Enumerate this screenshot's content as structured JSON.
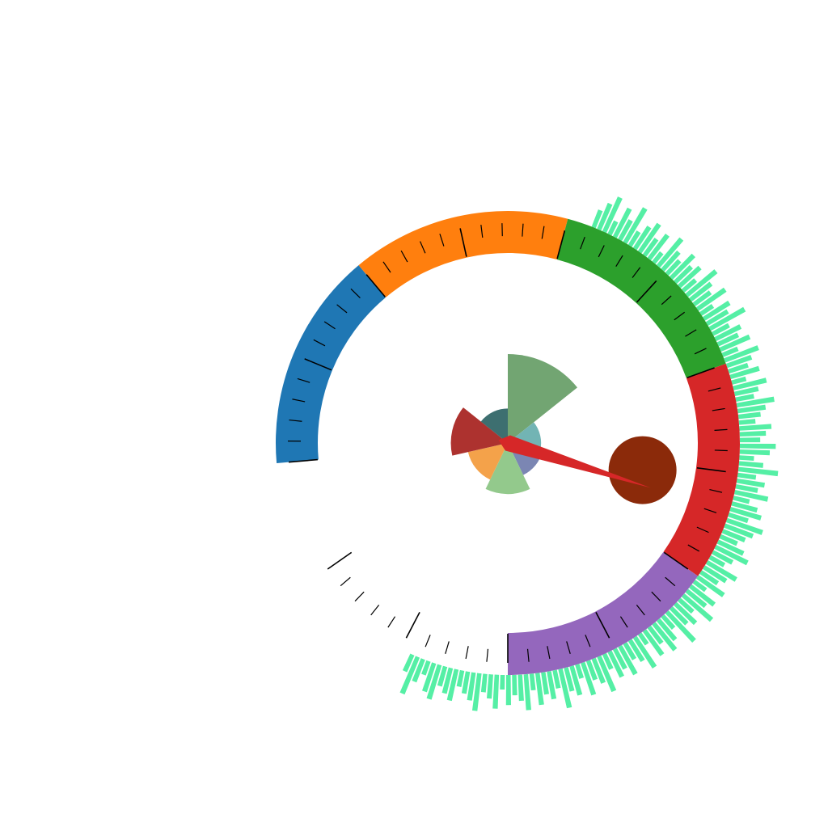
{
  "chart_data": {
    "type": "gauge",
    "gauge": {
      "segments": [
        {
          "from": 0,
          "to": 10,
          "color": "#1f77b4"
        },
        {
          "from": 10,
          "to": 20,
          "color": "#ff7f0e"
        },
        {
          "from": 20,
          "to": 30,
          "color": "#2ca02c"
        },
        {
          "from": 30,
          "to": 40,
          "color": "#d62728"
        },
        {
          "from": 40,
          "to": 50,
          "color": "#9467bd"
        },
        {
          "from": 50,
          "to": 60,
          "color": "#ffffff"
        }
      ],
      "range": [
        0,
        60
      ],
      "major_tick_step": 5,
      "minor_tick_step": 1,
      "needle_value": 36.8,
      "needle_color": "#d62728",
      "marker_color": "#8b2a0a"
    },
    "radial_bars": {
      "color": "#55efa5",
      "count": 128,
      "values": [
        0.35,
        0.6,
        0.85,
        0.25,
        0.7,
        0.45,
        0.9,
        0.3,
        0.55,
        0.75,
        0.4,
        0.65,
        0.2,
        0.8,
        0.5,
        0.35,
        0.7,
        0.45,
        0.6,
        0.3,
        0.85,
        0.55,
        0.4,
        0.75,
        0.25,
        0.65,
        0.5,
        0.9,
        0.35,
        0.6,
        0.45,
        0.7,
        0.3,
        0.8,
        0.55,
        0.4,
        0.65,
        0.25,
        0.75,
        0.5,
        0.35,
        0.85,
        0.6,
        0.45,
        0.3,
        0.7,
        0.55,
        0.4,
        0.8,
        0.65,
        0.25,
        0.5,
        0.9,
        0.35,
        0.6,
        0.45,
        0.75,
        0.3,
        0.55,
        0.7,
        0.4,
        0.85,
        0.65,
        0.5,
        0.35,
        0.6,
        0.8,
        0.45,
        0.3,
        0.75,
        0.55,
        0.4,
        0.7,
        0.25,
        0.65,
        0.5,
        0.85,
        0.35,
        0.6,
        0.45,
        0.9,
        0.3,
        0.55,
        0.75,
        0.4,
        0.65,
        0.2,
        0.8,
        0.5,
        0.35,
        0.7,
        0.45,
        0.6,
        0.3,
        0.85,
        0.55,
        0.4,
        0.75,
        0.25,
        0.65,
        0.5,
        0.9,
        0.35,
        0.6,
        0.45,
        0.7,
        0.3,
        0.8,
        0.55,
        0.4,
        0.65,
        0.25,
        0.75,
        0.5,
        0.35,
        0.85,
        0.6,
        0.45,
        0.3,
        0.7,
        0.55,
        0.4,
        0.8,
        0.65,
        0.25,
        0.5,
        0.9,
        0.35
      ]
    },
    "rose": {
      "slices": [
        {
          "value": 100,
          "color": "#72a572"
        },
        {
          "value": 14,
          "color": "#72b4b4"
        },
        {
          "value": 16,
          "color": "#7b86b3"
        },
        {
          "value": 33,
          "color": "#93c98c"
        },
        {
          "value": 21,
          "color": "#f4a24a"
        },
        {
          "value": 41,
          "color": "#ad322f"
        },
        {
          "value": 15,
          "color": "#3d6f70"
        }
      ]
    }
  }
}
